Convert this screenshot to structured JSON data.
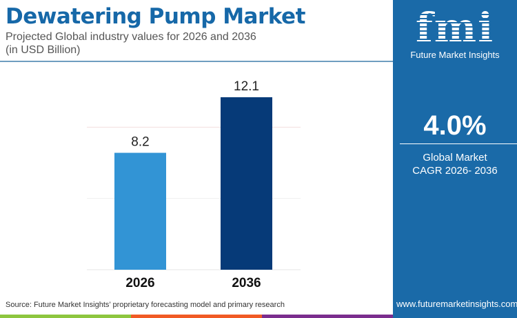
{
  "header": {
    "title": "Dewatering Pump Market",
    "subtitle_line1": "Projected Global industry values for 2026 and 2036",
    "subtitle_line2": "(in USD Billion)"
  },
  "sidebar": {
    "logo_text": "fmi",
    "logo_name": "Future Market Insights",
    "cagr_value": "4.0%",
    "cagr_label_line1": "Global Market",
    "cagr_label_line2": "CAGR 2026- 2036",
    "url": "www.futuremarketinsights.com",
    "background": "#1a6aa8"
  },
  "footer": {
    "source": "Source: Future Market Insights’ proprietary forecasting model and primary research",
    "strip_colors": [
      "#8dc63f",
      "#f15a24",
      "#7b2d8e"
    ]
  },
  "chart_data": {
    "type": "bar",
    "categories": [
      "2026",
      "2036"
    ],
    "values": [
      8.2,
      12.1
    ],
    "data_labels": [
      "8.2",
      "12.1"
    ],
    "colors": [
      "#3294d5",
      "#063a78"
    ],
    "ylim": [
      0,
      15
    ],
    "grid": true,
    "gridline_values": [
      5,
      10
    ],
    "title": "Dewatering Pump Market",
    "xlabel": "",
    "ylabel": ""
  }
}
